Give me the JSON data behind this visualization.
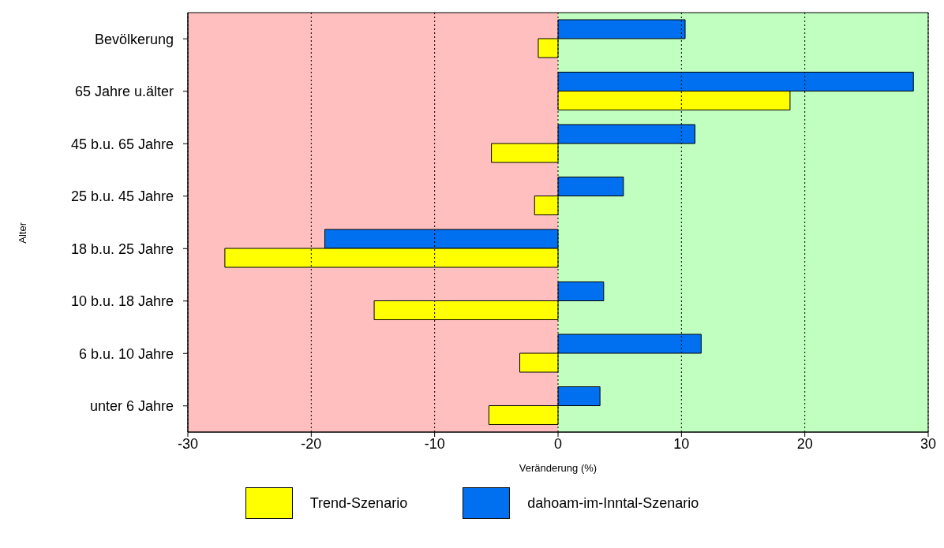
{
  "chart_data": {
    "type": "bar",
    "orientation": "horizontal",
    "xlabel": "Veränderung (%)",
    "ylabel": "Alter",
    "categories": [
      "Bevölkerung",
      "65 Jahre u.älter",
      "45 b.u. 65 Jahre",
      "25 b.u. 45 Jahre",
      "18 b.u. 25 Jahre",
      "10 b.u. 18 Jahre",
      "6 b.u. 10 Jahre",
      "unter 6 Jahre"
    ],
    "series": [
      {
        "name": "Trend-Szenario",
        "color": "#ffff00",
        "values": [
          -1.6,
          18.8,
          -5.4,
          -1.9,
          -27.0,
          -14.9,
          -3.1,
          -5.6
        ]
      },
      {
        "name": "dahoam-im-Inntal-Szenario",
        "color": "#0070f0",
        "values": [
          10.3,
          28.8,
          11.1,
          5.3,
          -18.9,
          3.7,
          11.6,
          3.4
        ]
      }
    ],
    "xlim": [
      -30,
      30
    ],
    "xticks": [
      -30,
      -20,
      -10,
      0,
      10,
      20,
      30
    ],
    "bands": [
      {
        "axis": "x",
        "from": -30,
        "to": 0,
        "color": "#ffbfbf"
      },
      {
        "axis": "x",
        "from": 0,
        "to": 30,
        "color": "#c0ffc0"
      }
    ],
    "grid": "x",
    "legend": "bottom"
  }
}
